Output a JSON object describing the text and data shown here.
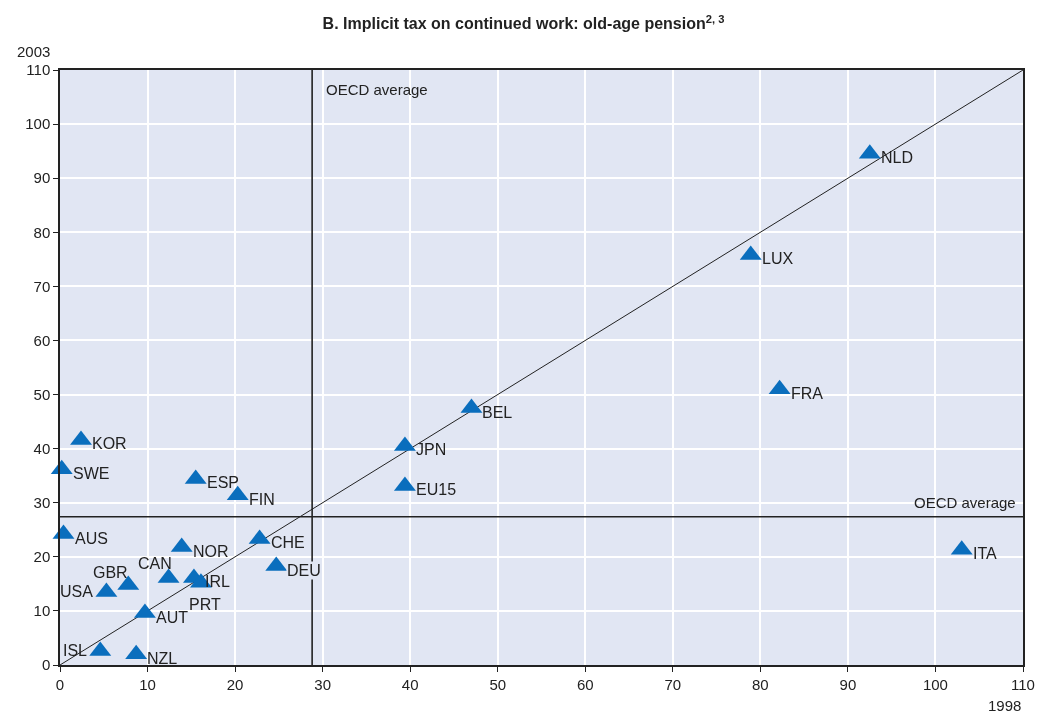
{
  "chart_data": {
    "type": "scatter",
    "title": "B. Implicit tax on continued work: old-age pension$^{2, 3}$",
    "xlabel": "1998",
    "ylabel": "2003",
    "xlim": [
      0,
      110
    ],
    "ylim": [
      0,
      110
    ],
    "xticks": [
      0,
      10,
      20,
      30,
      40,
      50,
      60,
      70,
      80,
      90,
      100,
      110
    ],
    "yticks": [
      0,
      10,
      20,
      30,
      40,
      50,
      60,
      70,
      80,
      90,
      100,
      110
    ],
    "grid": true,
    "marker": "triangle",
    "series": [
      {
        "color": "#0a6ebd",
        "x": [
          2.4,
          0.2,
          15.5,
          20.3,
          0.4,
          13.9,
          22.8,
          24.7,
          12.4,
          15.3,
          16.1,
          7.8,
          5.3,
          9.7,
          4.6,
          8.7,
          39.4,
          39.4,
          47.0,
          78.9,
          82.2,
          92.5,
          103.0
        ],
        "values": [
          41.6,
          36.2,
          34.4,
          31.4,
          24.2,
          21.8,
          23.3,
          18.3,
          16.1,
          16.1,
          15.2,
          14.8,
          13.5,
          9.6,
          2.6,
          2.0,
          40.5,
          33.1,
          47.5,
          75.8,
          51.0,
          94.5,
          21.3
        ]
      },
      {
        "type": "line",
        "color": "#222222",
        "marker": "none",
        "x": [
          0,
          110
        ],
        "values": [
          0,
          110
        ]
      }
    ],
    "ref_lines": [
      {
        "axis": "x",
        "value": 28.8,
        "label": "OECD average",
        "color": "#222222"
      },
      {
        "axis": "y",
        "value": 27.4,
        "label": "OECD average",
        "color": "#222222"
      }
    ],
    "annotations": [
      {
        "text": "KOR",
        "x": 2.4,
        "y": 41.6
      },
      {
        "text": "SWE",
        "x": 0.2,
        "y": 36.2
      },
      {
        "text": "ESP",
        "x": 15.5,
        "y": 34.4
      },
      {
        "text": "FIN",
        "x": 20.3,
        "y": 31.4
      },
      {
        "text": "AUS",
        "x": 0.4,
        "y": 24.2
      },
      {
        "text": "NOR",
        "x": 13.9,
        "y": 21.8
      },
      {
        "text": "CHE",
        "x": 22.8,
        "y": 23.3
      },
      {
        "text": "DEU",
        "x": 24.7,
        "y": 18.3
      },
      {
        "text": "CAN",
        "x": 12.4,
        "y": 16.1
      },
      {
        "text": "IRL",
        "x": 15.3,
        "y": 16.1
      },
      {
        "text": "PRT",
        "x": 16.1,
        "y": 15.2
      },
      {
        "text": "GBR",
        "x": 7.8,
        "y": 14.8
      },
      {
        "text": "USA",
        "x": 5.3,
        "y": 13.5
      },
      {
        "text": "AUT",
        "x": 9.7,
        "y": 9.6
      },
      {
        "text": "ISL",
        "x": 4.6,
        "y": 2.6
      },
      {
        "text": "NZL",
        "x": 8.7,
        "y": 2.0
      },
      {
        "text": "JPN",
        "x": 39.4,
        "y": 40.5
      },
      {
        "text": "EU15",
        "x": 39.4,
        "y": 33.1
      },
      {
        "text": "BEL",
        "x": 47.0,
        "y": 47.5
      },
      {
        "text": "LUX",
        "x": 78.9,
        "y": 75.8
      },
      {
        "text": "FRA",
        "x": 82.2,
        "y": 51.0
      },
      {
        "text": "NLD",
        "x": 92.5,
        "y": 94.5
      },
      {
        "text": "ITA",
        "x": 103.0,
        "y": 21.3
      }
    ]
  }
}
